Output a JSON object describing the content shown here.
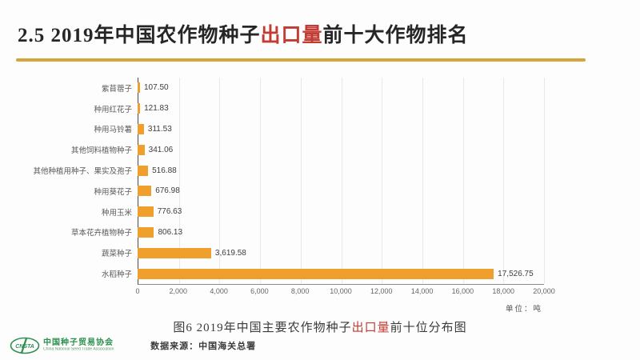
{
  "slide": {
    "title": {
      "prefix": "2.5  2019年中国农作物种子",
      "highlight": "出口量",
      "suffix": "前十大作物排名"
    },
    "caption": {
      "prefix": "图6  2019年中国主要农作物种子",
      "highlight": "出口量",
      "suffix": "前十位分布图"
    },
    "footer": {
      "logo_text": "CNSTA",
      "org_cn": "中国种子贸易协会",
      "org_en": "China National Seed Trade Association",
      "source": "数据来源：中国海关总署"
    }
  },
  "chart_data": {
    "type": "bar",
    "orientation": "horizontal",
    "title": "2019年中国主要农作物种子出口量前十位分布图",
    "categories": [
      "紫苜蓿子",
      "种用红花子",
      "种用马铃薯",
      "其他饲料植物种子",
      "其他种植用种子、果实及孢子",
      "种用葵花子",
      "种用玉米",
      "草本花卉植物种子",
      "蔬菜种子",
      "水稻种子"
    ],
    "values": [
      107.5,
      121.83,
      311.53,
      341.06,
      516.88,
      676.98,
      776.63,
      806.13,
      3619.58,
      17526.75
    ],
    "value_labels": [
      "107.50",
      "121.83",
      "311.53",
      "341.06",
      "516.88",
      "676.98",
      "776.63",
      "806.13",
      "3,619.58",
      "17,526.75"
    ],
    "x_ticks": [
      "0",
      "2,000",
      "4,000",
      "6,000",
      "8,000",
      "10,000",
      "12,000",
      "14,000",
      "16,000",
      "18,000",
      "20,000"
    ],
    "xlim": [
      0,
      20000
    ],
    "grid": true,
    "unit_label": "单位：吨"
  },
  "colors": {
    "bar_orange": "#efa02c",
    "highlight_red": "#c23c33",
    "accent_gold": "#d5a03a",
    "logo_green": "#2e8f4f"
  }
}
